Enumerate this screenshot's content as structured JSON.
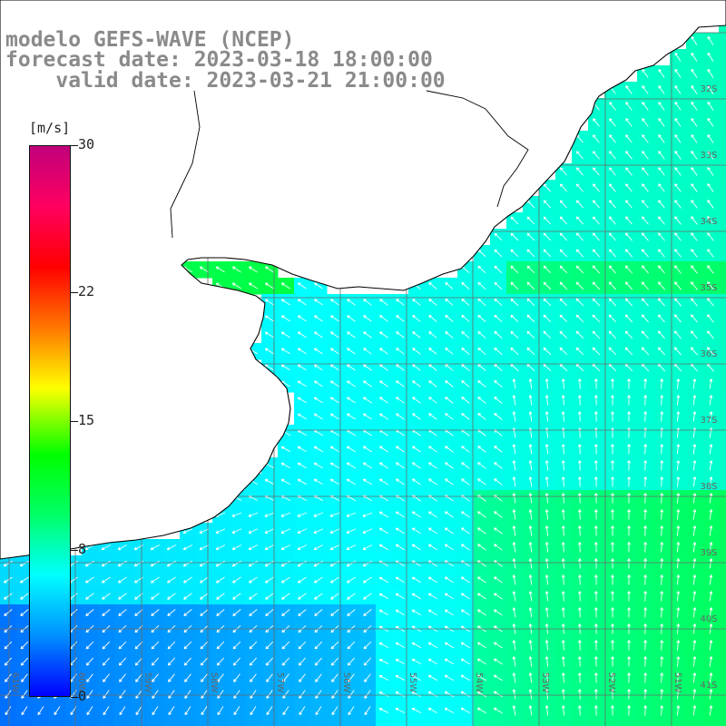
{
  "title": {
    "line1": "modelo GEFS-WAVE (NCEP)",
    "line2": "forecast date: 2023-03-18 18:00:00",
    "line3": "    valid date: 2023-03-21 21:00:00"
  },
  "colorbar": {
    "unit": "[m/s]",
    "min": 0,
    "max": 30,
    "ticks": [
      "30",
      "22",
      "15",
      "8",
      "0"
    ],
    "tick_values": [
      30,
      22,
      15,
      8,
      0
    ],
    "colors": [
      "#0000ff",
      "#0090ff",
      "#00ffff",
      "#00ff66",
      "#00ff00",
      "#ffff00",
      "#ff7700",
      "#ff0000",
      "#ff0060",
      "#c0007a"
    ]
  },
  "grid": {
    "lat_labels": [
      "32S",
      "33S",
      "34S",
      "35S",
      "36S",
      "37S",
      "38S",
      "39S",
      "40S",
      "41S"
    ],
    "lon_labels": [
      "61W",
      "60W",
      "59W",
      "58W",
      "57W",
      "56W",
      "55W",
      "54W",
      "53W",
      "52W",
      "51W"
    ]
  },
  "map_colors": {
    "land": "#ffffff",
    "coast": "#000000",
    "grid": "#6a6a6a",
    "arrow": "#ffffff"
  }
}
